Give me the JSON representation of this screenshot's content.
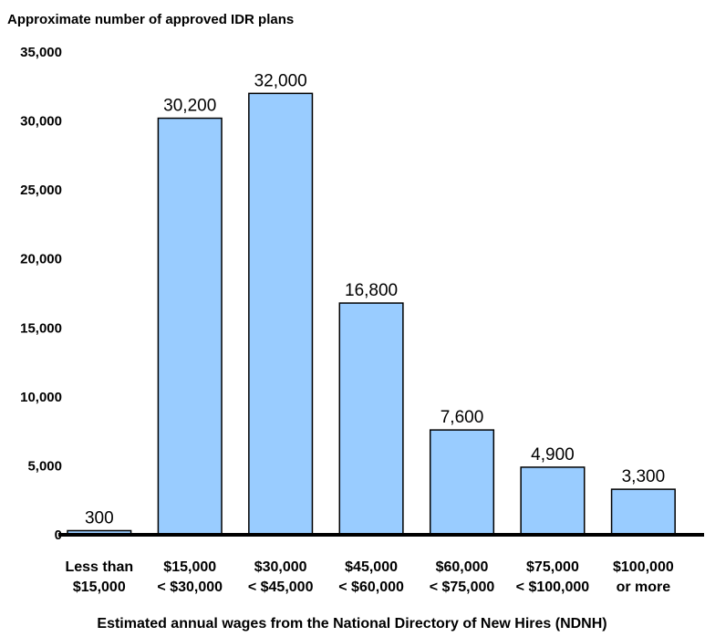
{
  "chart_data": {
    "type": "bar",
    "title": "",
    "ylabel": "Approximate number of approved IDR plans",
    "xlabel": "Estimated annual wages from the National Directory of New Hires (NDNH)",
    "categories": [
      [
        "Less than",
        "$15,000"
      ],
      [
        "$15,000",
        "< $30,000"
      ],
      [
        "$30,000",
        "< $45,000"
      ],
      [
        "$45,000",
        "< $60,000"
      ],
      [
        "$60,000",
        "< $75,000"
      ],
      [
        "$75,000",
        "< $100,000"
      ],
      [
        "$100,000",
        "or more"
      ]
    ],
    "values": [
      300,
      30200,
      32000,
      16800,
      7600,
      4900,
      3300
    ],
    "value_labels": [
      "300",
      "30,200",
      "32,000",
      "16,800",
      "7,600",
      "4,900",
      "3,300"
    ],
    "ylim": [
      0,
      35000
    ],
    "yticks": [
      0,
      5000,
      10000,
      15000,
      20000,
      25000,
      30000,
      35000
    ],
    "ytick_labels": [
      "0",
      "5,000",
      "10,000",
      "15,000",
      "20,000",
      "25,000",
      "30,000",
      "35,000"
    ],
    "grid": false,
    "legend": "none",
    "bar_color": "#99ccff",
    "bar_stroke": "#000000"
  }
}
